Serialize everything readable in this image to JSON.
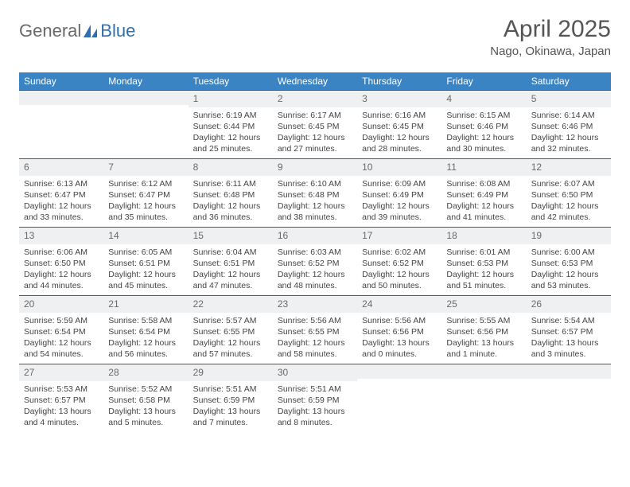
{
  "brand": {
    "part1": "General",
    "part2": "Blue"
  },
  "title": "April 2025",
  "location": "Nago, Okinawa, Japan",
  "colors": {
    "header_bg": "#3b84c4",
    "header_text": "#ffffff",
    "daynum_bg": "#eef0f2",
    "row_border": "#2e5e8a",
    "brand_gray": "#6a6a6a",
    "brand_blue": "#2f6fb0"
  },
  "weekdays": [
    "Sunday",
    "Monday",
    "Tuesday",
    "Wednesday",
    "Thursday",
    "Friday",
    "Saturday"
  ],
  "weeks": [
    [
      {
        "day": "",
        "sunrise": "",
        "sunset": "",
        "daylight": ""
      },
      {
        "day": "",
        "sunrise": "",
        "sunset": "",
        "daylight": ""
      },
      {
        "day": "1",
        "sunrise": "Sunrise: 6:19 AM",
        "sunset": "Sunset: 6:44 PM",
        "daylight": "Daylight: 12 hours and 25 minutes."
      },
      {
        "day": "2",
        "sunrise": "Sunrise: 6:17 AM",
        "sunset": "Sunset: 6:45 PM",
        "daylight": "Daylight: 12 hours and 27 minutes."
      },
      {
        "day": "3",
        "sunrise": "Sunrise: 6:16 AM",
        "sunset": "Sunset: 6:45 PM",
        "daylight": "Daylight: 12 hours and 28 minutes."
      },
      {
        "day": "4",
        "sunrise": "Sunrise: 6:15 AM",
        "sunset": "Sunset: 6:46 PM",
        "daylight": "Daylight: 12 hours and 30 minutes."
      },
      {
        "day": "5",
        "sunrise": "Sunrise: 6:14 AM",
        "sunset": "Sunset: 6:46 PM",
        "daylight": "Daylight: 12 hours and 32 minutes."
      }
    ],
    [
      {
        "day": "6",
        "sunrise": "Sunrise: 6:13 AM",
        "sunset": "Sunset: 6:47 PM",
        "daylight": "Daylight: 12 hours and 33 minutes."
      },
      {
        "day": "7",
        "sunrise": "Sunrise: 6:12 AM",
        "sunset": "Sunset: 6:47 PM",
        "daylight": "Daylight: 12 hours and 35 minutes."
      },
      {
        "day": "8",
        "sunrise": "Sunrise: 6:11 AM",
        "sunset": "Sunset: 6:48 PM",
        "daylight": "Daylight: 12 hours and 36 minutes."
      },
      {
        "day": "9",
        "sunrise": "Sunrise: 6:10 AM",
        "sunset": "Sunset: 6:48 PM",
        "daylight": "Daylight: 12 hours and 38 minutes."
      },
      {
        "day": "10",
        "sunrise": "Sunrise: 6:09 AM",
        "sunset": "Sunset: 6:49 PM",
        "daylight": "Daylight: 12 hours and 39 minutes."
      },
      {
        "day": "11",
        "sunrise": "Sunrise: 6:08 AM",
        "sunset": "Sunset: 6:49 PM",
        "daylight": "Daylight: 12 hours and 41 minutes."
      },
      {
        "day": "12",
        "sunrise": "Sunrise: 6:07 AM",
        "sunset": "Sunset: 6:50 PM",
        "daylight": "Daylight: 12 hours and 42 minutes."
      }
    ],
    [
      {
        "day": "13",
        "sunrise": "Sunrise: 6:06 AM",
        "sunset": "Sunset: 6:50 PM",
        "daylight": "Daylight: 12 hours and 44 minutes."
      },
      {
        "day": "14",
        "sunrise": "Sunrise: 6:05 AM",
        "sunset": "Sunset: 6:51 PM",
        "daylight": "Daylight: 12 hours and 45 minutes."
      },
      {
        "day": "15",
        "sunrise": "Sunrise: 6:04 AM",
        "sunset": "Sunset: 6:51 PM",
        "daylight": "Daylight: 12 hours and 47 minutes."
      },
      {
        "day": "16",
        "sunrise": "Sunrise: 6:03 AM",
        "sunset": "Sunset: 6:52 PM",
        "daylight": "Daylight: 12 hours and 48 minutes."
      },
      {
        "day": "17",
        "sunrise": "Sunrise: 6:02 AM",
        "sunset": "Sunset: 6:52 PM",
        "daylight": "Daylight: 12 hours and 50 minutes."
      },
      {
        "day": "18",
        "sunrise": "Sunrise: 6:01 AM",
        "sunset": "Sunset: 6:53 PM",
        "daylight": "Daylight: 12 hours and 51 minutes."
      },
      {
        "day": "19",
        "sunrise": "Sunrise: 6:00 AM",
        "sunset": "Sunset: 6:53 PM",
        "daylight": "Daylight: 12 hours and 53 minutes."
      }
    ],
    [
      {
        "day": "20",
        "sunrise": "Sunrise: 5:59 AM",
        "sunset": "Sunset: 6:54 PM",
        "daylight": "Daylight: 12 hours and 54 minutes."
      },
      {
        "day": "21",
        "sunrise": "Sunrise: 5:58 AM",
        "sunset": "Sunset: 6:54 PM",
        "daylight": "Daylight: 12 hours and 56 minutes."
      },
      {
        "day": "22",
        "sunrise": "Sunrise: 5:57 AM",
        "sunset": "Sunset: 6:55 PM",
        "daylight": "Daylight: 12 hours and 57 minutes."
      },
      {
        "day": "23",
        "sunrise": "Sunrise: 5:56 AM",
        "sunset": "Sunset: 6:55 PM",
        "daylight": "Daylight: 12 hours and 58 minutes."
      },
      {
        "day": "24",
        "sunrise": "Sunrise: 5:56 AM",
        "sunset": "Sunset: 6:56 PM",
        "daylight": "Daylight: 13 hours and 0 minutes."
      },
      {
        "day": "25",
        "sunrise": "Sunrise: 5:55 AM",
        "sunset": "Sunset: 6:56 PM",
        "daylight": "Daylight: 13 hours and 1 minute."
      },
      {
        "day": "26",
        "sunrise": "Sunrise: 5:54 AM",
        "sunset": "Sunset: 6:57 PM",
        "daylight": "Daylight: 13 hours and 3 minutes."
      }
    ],
    [
      {
        "day": "27",
        "sunrise": "Sunrise: 5:53 AM",
        "sunset": "Sunset: 6:57 PM",
        "daylight": "Daylight: 13 hours and 4 minutes."
      },
      {
        "day": "28",
        "sunrise": "Sunrise: 5:52 AM",
        "sunset": "Sunset: 6:58 PM",
        "daylight": "Daylight: 13 hours and 5 minutes."
      },
      {
        "day": "29",
        "sunrise": "Sunrise: 5:51 AM",
        "sunset": "Sunset: 6:59 PM",
        "daylight": "Daylight: 13 hours and 7 minutes."
      },
      {
        "day": "30",
        "sunrise": "Sunrise: 5:51 AM",
        "sunset": "Sunset: 6:59 PM",
        "daylight": "Daylight: 13 hours and 8 minutes."
      },
      {
        "day": "",
        "sunrise": "",
        "sunset": "",
        "daylight": ""
      },
      {
        "day": "",
        "sunrise": "",
        "sunset": "",
        "daylight": ""
      },
      {
        "day": "",
        "sunrise": "",
        "sunset": "",
        "daylight": ""
      }
    ]
  ]
}
